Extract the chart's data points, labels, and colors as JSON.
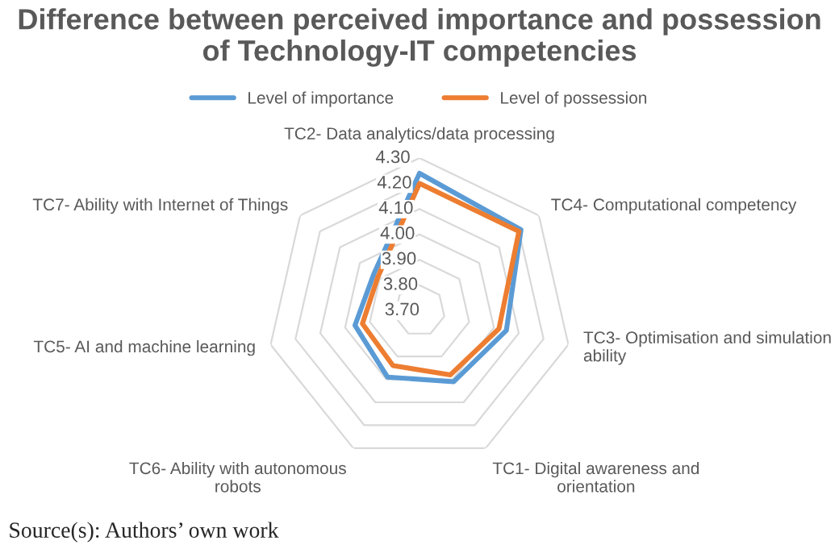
{
  "chart_data": {
    "type": "radar",
    "title": "Difference between perceived importance and possession\nof Technology-IT competencies",
    "categories": [
      "TC2- Data analytics/data processing",
      "TC4- Computational competency",
      "TC3- Optimisation and simulation\nability",
      "TC1- Digital awareness and\norientation",
      "TC6- Ability with autonomous\nrobots",
      "TC5- AI and machine learning",
      "TC7- Ability with Internet of Things"
    ],
    "series": [
      {
        "name": "Level of importance",
        "color": "#5b9bd5",
        "values": [
          4.24,
          4.21,
          4.05,
          4.01,
          3.99,
          3.96,
          3.93
        ]
      },
      {
        "name": "Level of possession",
        "color": "#ed7d31",
        "values": [
          4.2,
          4.2,
          4.02,
          3.98,
          3.94,
          3.93,
          3.91
        ]
      }
    ],
    "ylim": [
      3.7,
      4.3
    ],
    "yticks": [
      {
        "value": 3.7,
        "label": "3.70"
      },
      {
        "value": 3.8,
        "label": "3.80"
      },
      {
        "value": 3.9,
        "label": "3.90"
      },
      {
        "value": 4.0,
        "label": "4.00"
      },
      {
        "value": 4.1,
        "label": "4.10"
      },
      {
        "value": 4.2,
        "label": "4.20"
      },
      {
        "value": 4.3,
        "label": "4.30"
      }
    ],
    "grid": true,
    "legend": "top",
    "marker": "none",
    "line_style": "solid",
    "annotations": [
      "Source(s): Authors’ own work"
    ]
  }
}
